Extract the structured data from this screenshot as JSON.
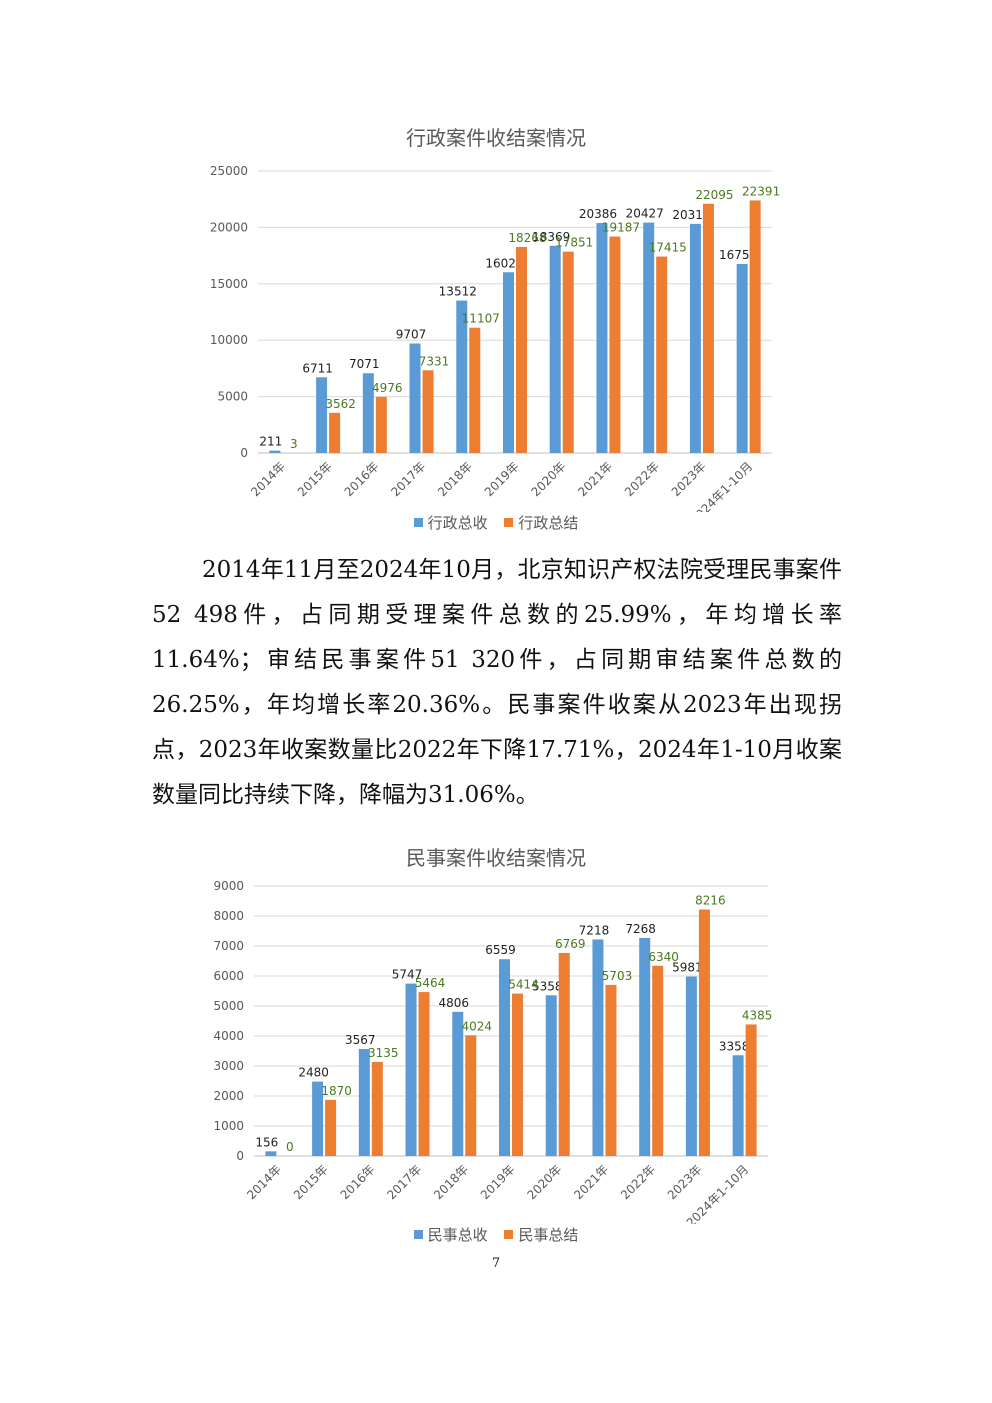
{
  "chart_data": [
    {
      "type": "bar",
      "title": "行政案件收结案情况",
      "categories": [
        "2014年",
        "2015年",
        "2016年",
        "2017年",
        "2018年",
        "2019年",
        "2020年",
        "2021年",
        "2022年",
        "2023年",
        "2024年1-10月"
      ],
      "series": [
        {
          "name": "行政总收",
          "color": "#5B9BD5",
          "label_color": "#1f1f1f",
          "values": [
            211,
            6711,
            7071,
            9707,
            13512,
            16021,
            18369,
            20386,
            20427,
            20313,
            16758
          ]
        },
        {
          "name": "行政总结",
          "color": "#ED7D31",
          "label_color": "#4a7a1f",
          "values": [
            3,
            3562,
            4976,
            7331,
            11107,
            18268,
            17851,
            19187,
            17415,
            22095,
            22391
          ]
        }
      ],
      "yticks": [
        "0",
        "5000",
        "10000",
        "15000",
        "20000",
        "25000"
      ],
      "ylim": [
        0,
        25000
      ],
      "grid": true,
      "legend": "bottom"
    },
    {
      "type": "bar",
      "title": "民事案件收结案情况",
      "categories": [
        "2014年",
        "2015年",
        "2016年",
        "2017年",
        "2018年",
        "2019年",
        "2020年",
        "2021年",
        "2022年",
        "2023年",
        "2024年1-10月"
      ],
      "series": [
        {
          "name": "民事总收",
          "color": "#5B9BD5",
          "label_color": "#1f1f1f",
          "values": [
            156,
            2480,
            3567,
            5747,
            4806,
            6559,
            5358,
            7218,
            7268,
            5981,
            3358
          ]
        },
        {
          "name": "民事总结",
          "color": "#ED7D31",
          "label_color": "#4a7a1f",
          "values": [
            0,
            1870,
            3135,
            5464,
            4024,
            5414,
            6769,
            5703,
            6340,
            8216,
            4385
          ]
        }
      ],
      "yticks": [
        "0",
        "1000",
        "2000",
        "3000",
        "4000",
        "5000",
        "6000",
        "7000",
        "8000",
        "9000"
      ],
      "ylim": [
        0,
        9000
      ],
      "grid": true,
      "legend": "bottom"
    }
  ],
  "paragraph": "2014年11月至2024年10月，北京知识产权法院受理民事案件52 498件，占同期受理案件总数的25.99%，年均增长率11.64%；审结民事案件51 320件，占同期审结案件总数的26.25%，年均增长率20.36%。民事案件收案从2023年出现拐点，2023年收案数量比2022年下降17.71%，2024年1-10月收案数量同比持续下降，降幅为31.06%。",
  "page_number": "7"
}
